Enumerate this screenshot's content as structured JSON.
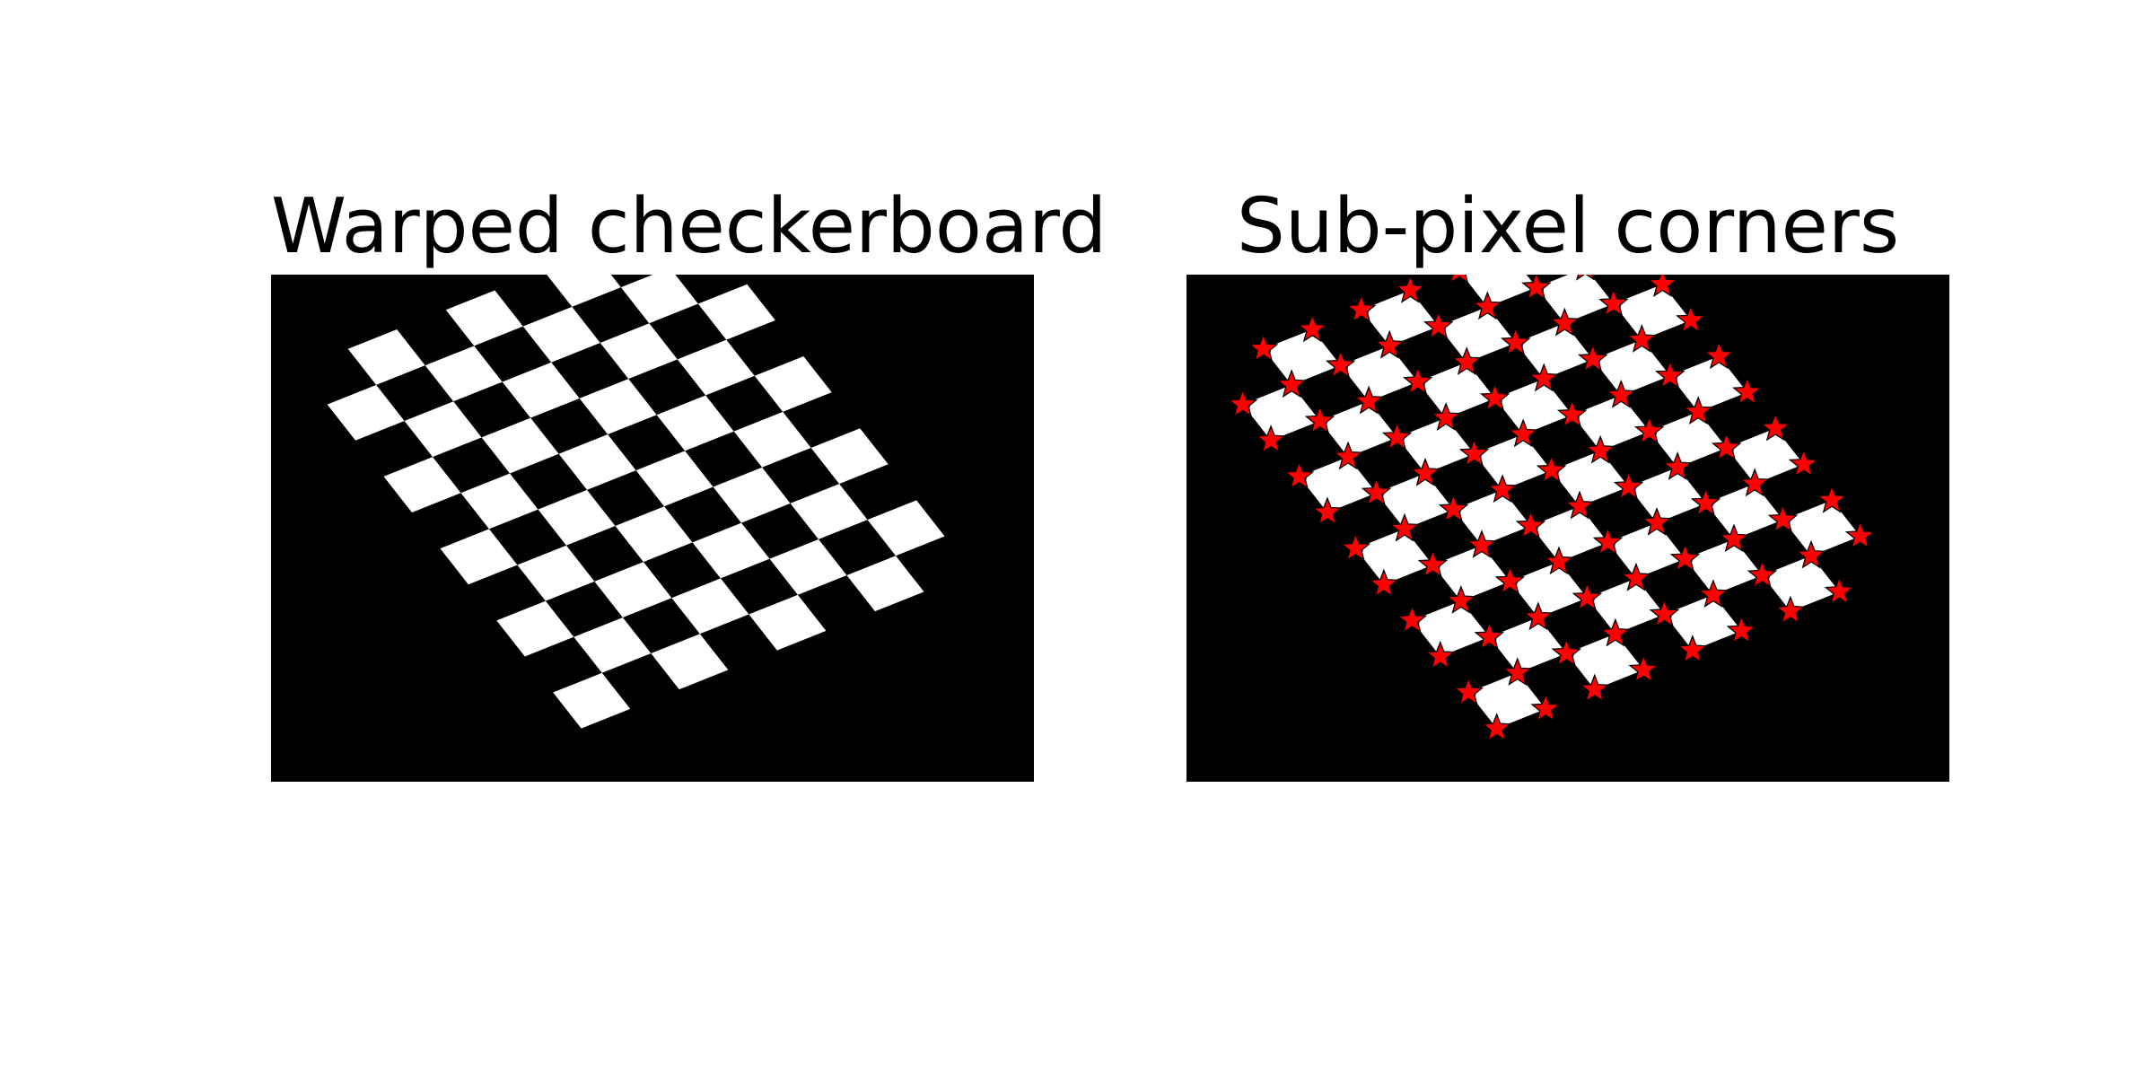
{
  "figure": {
    "panels": [
      {
        "title": "Warped checkerboard"
      },
      {
        "title": "Sub-pixel corners"
      }
    ]
  },
  "image": {
    "width": 300,
    "height": 200,
    "background": "#000000",
    "square_color": "#ffffff"
  },
  "board": {
    "cols": 8,
    "rows": 10,
    "first_white": "odd",
    "transform": {
      "origin": [
        11,
        37
      ],
      "col_step": [
        19.25,
        -7.7
      ],
      "row_step": [
        11.1,
        14.2
      ]
    }
  },
  "markers": {
    "corner_star_color": "#ff0000",
    "corner_star_edge": "#000000",
    "subpix_dot_color": "#0000ff"
  }
}
